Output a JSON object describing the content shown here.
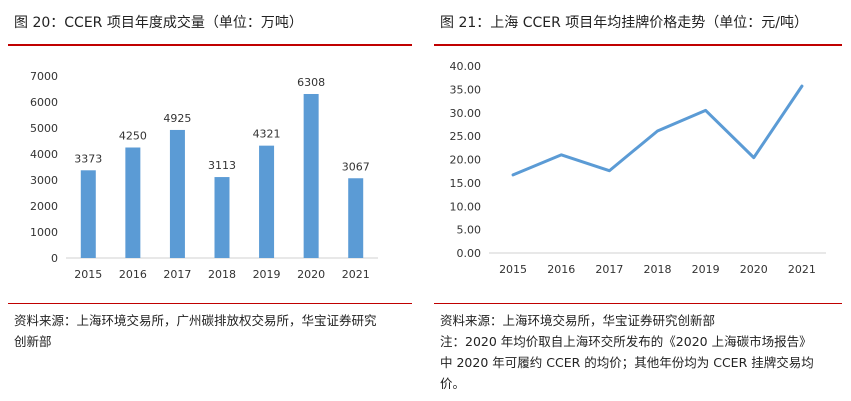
{
  "left": {
    "title": "图 20：CCER 项目年度成交量（单位：万吨）",
    "source_lines": [
      "资料来源：上海环境交易所，广州碳排放权交易所，华宝证券研究",
      "创新部"
    ]
  },
  "right": {
    "title": "图 21：上海 CCER 项目年均挂牌价格走势（单位：元/吨）",
    "source_lines": [
      "资料来源：上海环境交易所，华宝证券研究创新部",
      "注：2020 年均价取自上海环交所发布的《2020 上海碳市场报告》",
      "中 2020 年可履约 CCER 的均价；其他年份均为 CCER 挂牌交易均",
      "价。"
    ]
  },
  "colors": {
    "bar": "#5b9bd5",
    "line": "#5b9bd5",
    "accent_rule": "#c00000"
  },
  "chart_data": [
    {
      "type": "bar",
      "title": "",
      "categories": [
        "2015",
        "2016",
        "2017",
        "2018",
        "2019",
        "2020",
        "2021"
      ],
      "values": [
        3373,
        4250,
        4925,
        3113,
        4321,
        6308,
        3067
      ],
      "ylim": [
        0,
        7000
      ],
      "yticks": [
        "0",
        "1000",
        "2000",
        "3000",
        "4000",
        "5000",
        "6000",
        "7000"
      ],
      "data_labels": true,
      "grid": false
    },
    {
      "type": "line",
      "title": "",
      "categories": [
        "2015",
        "2016",
        "2017",
        "2018",
        "2019",
        "2020",
        "2021"
      ],
      "values": [
        16.7,
        21.0,
        17.6,
        26.1,
        30.5,
        20.4,
        35.7
      ],
      "ylim": [
        0,
        40
      ],
      "yticks": [
        "0.00",
        "5.00",
        "10.00",
        "15.00",
        "20.00",
        "25.00",
        "30.00",
        "35.00",
        "40.00"
      ],
      "data_labels": false,
      "grid": false
    }
  ]
}
